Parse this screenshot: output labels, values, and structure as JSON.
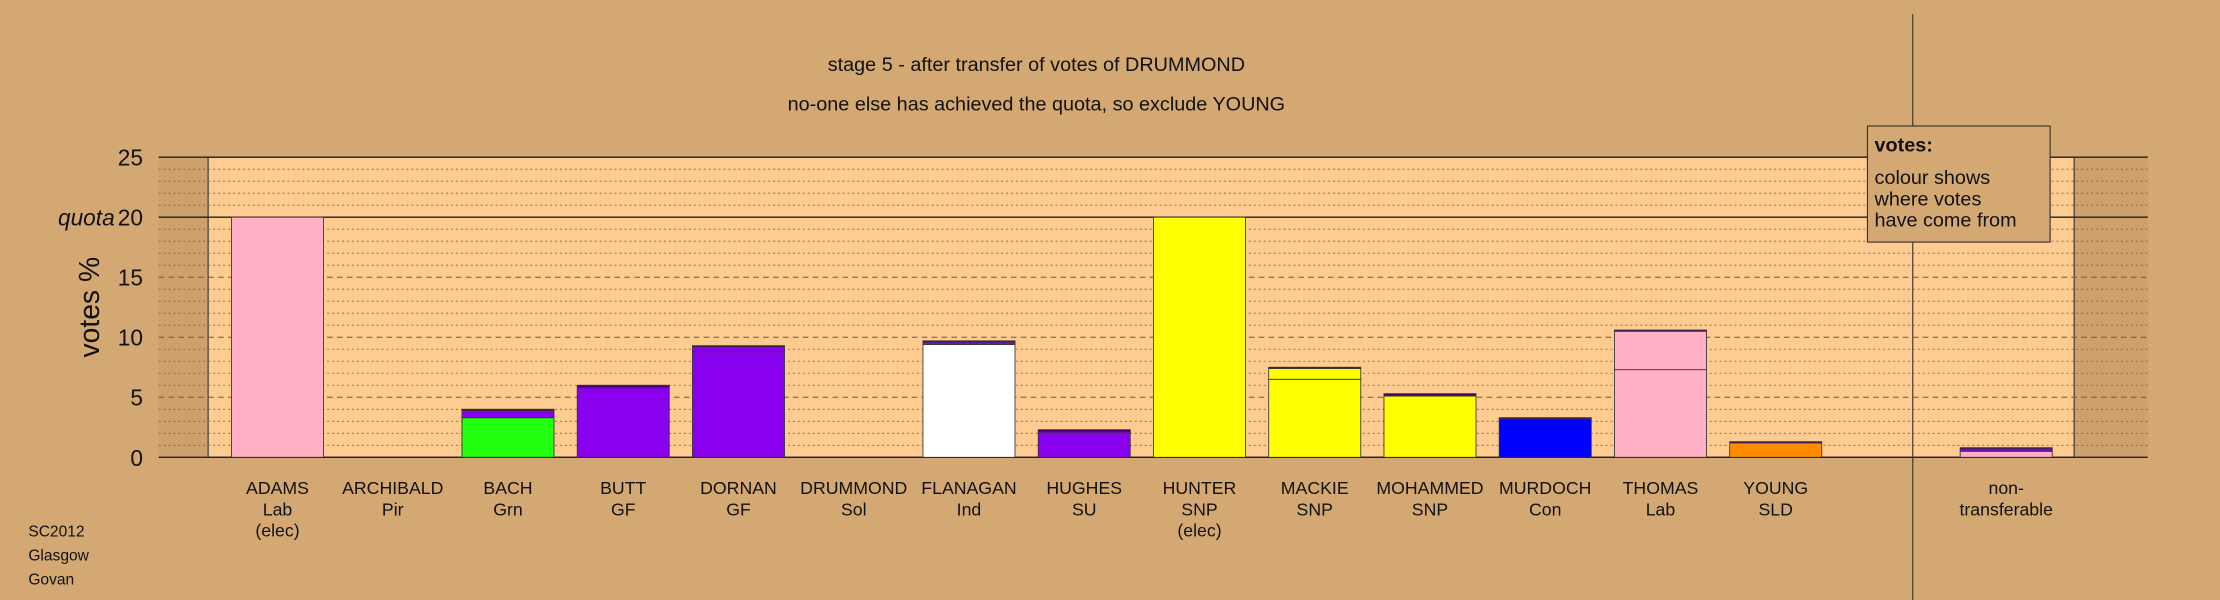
{
  "chart_data": {
    "type": "stacked-bar",
    "title": "stage 5 - after transfer of votes of DRUMMOND",
    "subtitle": "no-one else has achieved the quota, so exclude YOUNG",
    "ylabel": "votes %",
    "ylim": [
      0,
      25
    ],
    "yticks": [
      0,
      5,
      10,
      15,
      20,
      25
    ],
    "minor_yticks": [
      1,
      2,
      3,
      4,
      6,
      7,
      8,
      9,
      11,
      12,
      13,
      14,
      16,
      17,
      18,
      19,
      21,
      22,
      23,
      24
    ],
    "quota": 20,
    "quota_label": "quota",
    "categories": [
      [
        "ADAMS",
        "Lab",
        "(elec)"
      ],
      [
        "ARCHIBALD",
        "Pir"
      ],
      [
        "BACH",
        "Grn"
      ],
      [
        "BUTT",
        "GF"
      ],
      [
        "DORNAN",
        "GF"
      ],
      [
        "DRUMMOND",
        "Sol"
      ],
      [
        "FLANAGAN",
        "Ind"
      ],
      [
        "HUGHES",
        "SU"
      ],
      [
        "HUNTER",
        "SNP",
        "(elec)"
      ],
      [
        "MACKIE",
        "SNP"
      ],
      [
        "MOHAMMED",
        "SNP"
      ],
      [
        "MURDOCH",
        "Con"
      ],
      [
        "THOMAS",
        "Lab"
      ],
      [
        "YOUNG",
        "SLD"
      ],
      [
        "non-",
        "transferable"
      ]
    ],
    "segments": [
      [
        {
          "color": "#ffb0c4",
          "value": 20
        }
      ],
      [],
      [
        {
          "color": "#22ff11",
          "value": 3.3
        },
        {
          "color": "#8800ee",
          "value": 0.6
        },
        {
          "color": "#4b0082",
          "value": 0.1
        }
      ],
      [
        {
          "color": "#8800ee",
          "value": 5.8
        },
        {
          "color": "#4b0082",
          "value": 0.2
        }
      ],
      [
        {
          "color": "#8800ee",
          "value": 8.8
        },
        {
          "color": "#8800ee",
          "value": 0.4
        },
        {
          "color": "#4b0082",
          "value": 0.1
        }
      ],
      [],
      [
        {
          "color": "#ffffff",
          "value": 9.4
        },
        {
          "color": "#8800ee",
          "value": 0.2
        },
        {
          "color": "#4b0082",
          "value": 0.1
        }
      ],
      [
        {
          "color": "#8800ee",
          "value": 2.1
        },
        {
          "color": "#4b0082",
          "value": 0.2
        }
      ],
      [
        {
          "color": "#ffff00",
          "value": 20
        }
      ],
      [
        {
          "color": "#ffff00",
          "value": 6.5
        },
        {
          "color": "#ffff00",
          "value": 0.9
        },
        {
          "color": "#4b0082",
          "value": 0.1
        }
      ],
      [
        {
          "color": "#ffff00",
          "value": 5.1
        },
        {
          "color": "#4b0082",
          "value": 0.2
        }
      ],
      [
        {
          "color": "#0000ff",
          "value": 3.2
        },
        {
          "color": "#4b0082",
          "value": 0.1
        }
      ],
      [
        {
          "color": "#ffb0c4",
          "value": 7.3
        },
        {
          "color": "#ffb0c4",
          "value": 3.2
        },
        {
          "color": "#4b0082",
          "value": 0.1
        }
      ],
      [
        {
          "color": "#ff8c00",
          "value": 1.2
        },
        {
          "color": "#4b0082",
          "value": 0.1
        }
      ],
      [
        {
          "color": "#ffb0c4",
          "value": 0.5
        },
        {
          "color": "#8800ee",
          "value": 0.2
        },
        {
          "color": "#4b0082",
          "value": 0.1
        }
      ]
    ],
    "legend_title": "votes:",
    "legend_lines": [
      "colour shows",
      "where votes",
      "have come from"
    ],
    "footer": [
      "SC2012",
      "Glasgow",
      "Govan"
    ]
  }
}
